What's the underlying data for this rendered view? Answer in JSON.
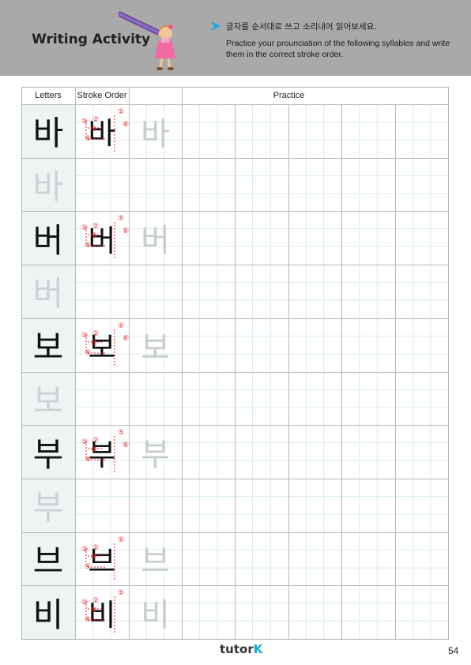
{
  "header": {
    "title": "Writing Activity",
    "instruction_ko": "글자를 순서대로 쓰고 소리내어 읽어보세요.",
    "instruction_en": "Practice your prounciation of the following syllables and write them in the correct stroke order."
  },
  "table": {
    "col_letters": "Letters",
    "col_stroke": "Stroke Order",
    "col_practice": "Practice",
    "rows": [
      {
        "letter": "바",
        "style": "dark",
        "stroke": "바",
        "trace": "바",
        "marks": [
          "①",
          "②",
          "③",
          "④",
          "⑤",
          "⑥"
        ]
      },
      {
        "letter": "바",
        "style": "faint",
        "stroke": "",
        "trace": "",
        "marks": []
      },
      {
        "letter": "버",
        "style": "dark",
        "stroke": "버",
        "trace": "버",
        "marks": [
          "①",
          "②",
          "③",
          "④",
          "⑤",
          "⑥"
        ]
      },
      {
        "letter": "버",
        "style": "faint",
        "stroke": "",
        "trace": "",
        "marks": []
      },
      {
        "letter": "보",
        "style": "dark",
        "stroke": "보",
        "trace": "보",
        "marks": [
          "①",
          "②",
          "③",
          "④",
          "⑤",
          "⑥"
        ]
      },
      {
        "letter": "보",
        "style": "faint",
        "stroke": "",
        "trace": "",
        "marks": []
      },
      {
        "letter": "부",
        "style": "dark",
        "stroke": "부",
        "trace": "부",
        "marks": [
          "①",
          "②",
          "③",
          "④",
          "⑤",
          "⑥"
        ]
      },
      {
        "letter": "부",
        "style": "faint",
        "stroke": "",
        "trace": "",
        "marks": []
      },
      {
        "letter": "브",
        "style": "dark",
        "stroke": "브",
        "trace": "브",
        "marks": [
          "①",
          "②",
          "③",
          "④",
          "⑤"
        ]
      },
      {
        "letter": "비",
        "style": "dark",
        "stroke": "비",
        "trace": "비",
        "marks": [
          "①",
          "②",
          "③",
          "④",
          "⑤"
        ]
      }
    ]
  },
  "footer": {
    "logo_main": "tutor",
    "logo_k": "K",
    "page_number": "54"
  },
  "colors": {
    "header_bg": "#a9a9a9",
    "accent_arrow": "#1aa9e0",
    "stroke_marks": "#e0262b",
    "letter_bg": "#eef3f4",
    "guide_lines": "#d7ecef"
  }
}
